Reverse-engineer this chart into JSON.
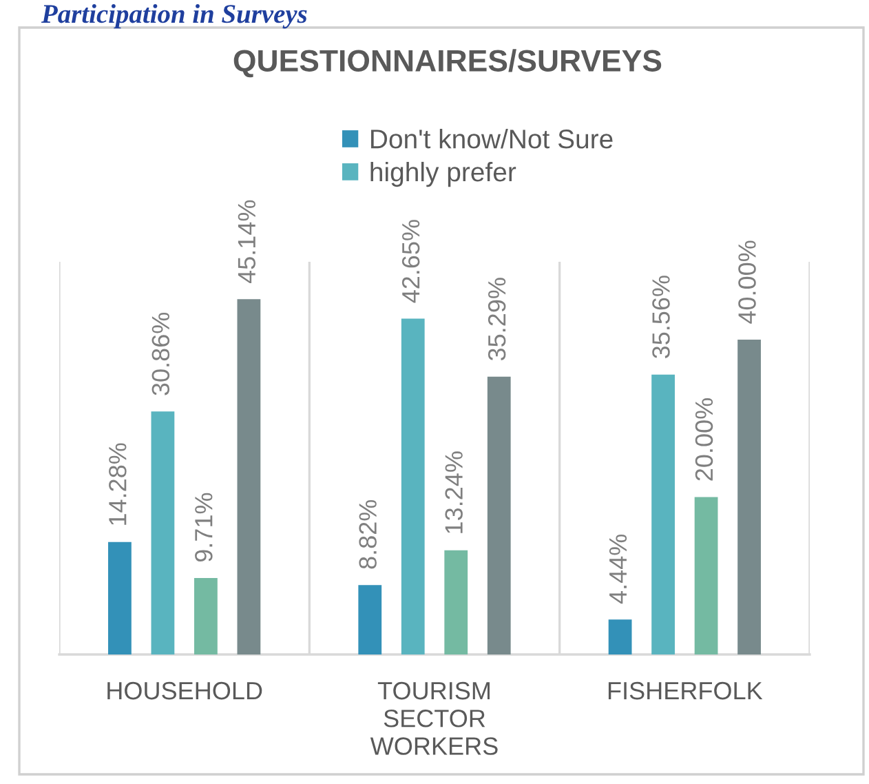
{
  "chart_data": {
    "type": "bar",
    "title": "QUESTIONNAIRES/SURVEYS",
    "annotations": [
      "Participation in Surveys"
    ],
    "categories": [
      "HOUSEHOLD",
      "TOURISM\nSECTOR\nWORKERS",
      "FISHERFOLK"
    ],
    "series": [
      {
        "name": "Don't know/Not Sure",
        "color": "#3391b8",
        "values": [
          14.28,
          8.82,
          4.44
        ],
        "value_labels": [
          "14.28%",
          "8.82%",
          "4.44%"
        ]
      },
      {
        "name": "highly prefer",
        "color": "#59b4bf",
        "values": [
          30.86,
          42.65,
          35.56
        ],
        "value_labels": [
          "30.86%",
          "42.65%",
          "35.56%"
        ]
      },
      {
        "color": "#74baa2",
        "values": [
          9.71,
          13.24,
          20.0
        ],
        "value_labels": [
          "9.71%",
          "13.24%",
          "20.00%"
        ]
      },
      {
        "color": "#788a8c",
        "values": [
          45.14,
          35.29,
          40.0
        ],
        "value_labels": [
          "45.14%",
          "35.29%",
          "40.00%"
        ]
      }
    ],
    "grid": "x",
    "legend": "top"
  }
}
